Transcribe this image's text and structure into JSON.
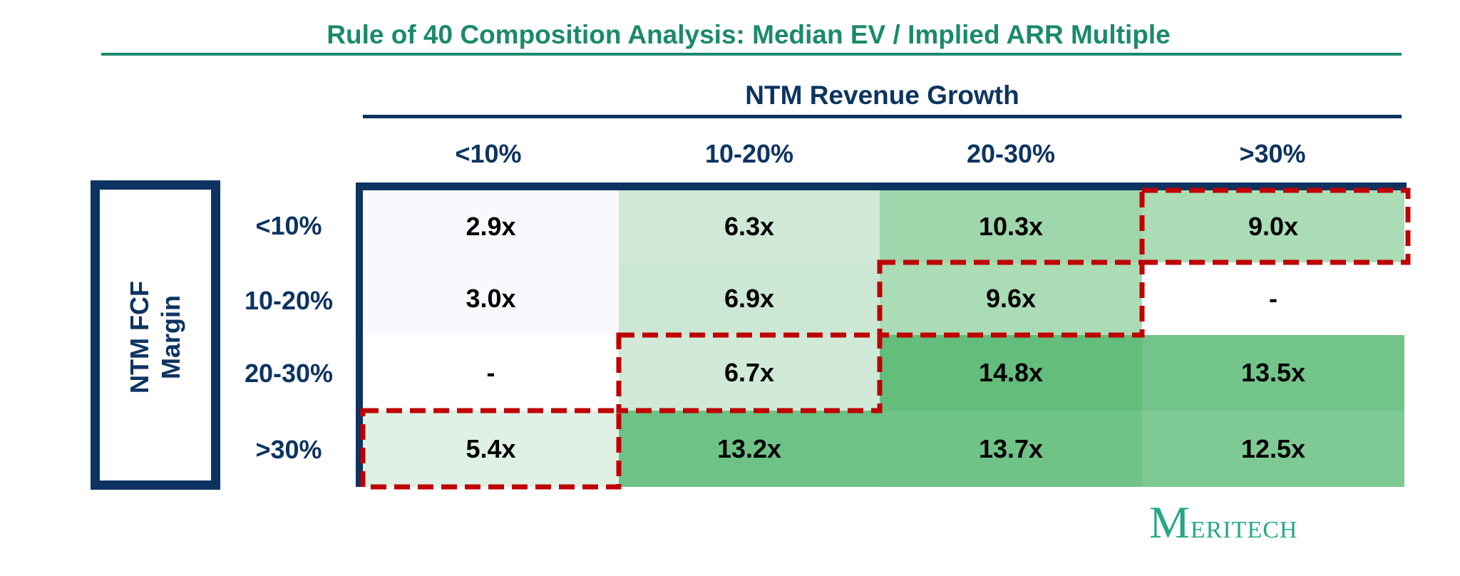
{
  "title": "Rule of 40 Composition Analysis: Median EV / Implied ARR Multiple",
  "logo": "MERITECH",
  "colors": {
    "title": "#1b8a6b",
    "axis": "#0d3461",
    "highlight_dash": "#c00000",
    "logo": "#27a787"
  },
  "chart_data": {
    "type": "heatmap",
    "title": "Rule of 40 Composition Analysis: Median EV / Implied ARR Multiple",
    "xlabel": "NTM Revenue Growth",
    "ylabel": "NTM FCF Margin",
    "x_categories": [
      "<10%",
      "10-20%",
      "20-30%",
      ">30%"
    ],
    "y_categories": [
      "<10%",
      "10-20%",
      "20-30%",
      ">30%"
    ],
    "values": [
      [
        "2.9x",
        "6.3x",
        "10.3x",
        "9.0x"
      ],
      [
        "3.0x",
        "6.9x",
        "9.6x",
        "-"
      ],
      [
        "-",
        "6.7x",
        "14.8x",
        "13.5x"
      ],
      [
        "5.4x",
        "13.2x",
        "13.7x",
        "12.5x"
      ]
    ],
    "cell_colors": [
      [
        "#f9f9fd",
        "#cfe9d6",
        "#9fd6ab",
        "#aadcb5"
      ],
      [
        "#f9f9fd",
        "#cce8d4",
        "#aadcb5",
        "#ffffff"
      ],
      [
        "#ffffff",
        "#d0ead7",
        "#63bd7b",
        "#73c48a"
      ],
      [
        "#dff0e4",
        "#6ec286",
        "#6fc387",
        "#7fca94"
      ]
    ],
    "highlighted_cells": [
      [
        0,
        3
      ],
      [
        1,
        2
      ],
      [
        2,
        1
      ],
      [
        3,
        0
      ]
    ]
  }
}
